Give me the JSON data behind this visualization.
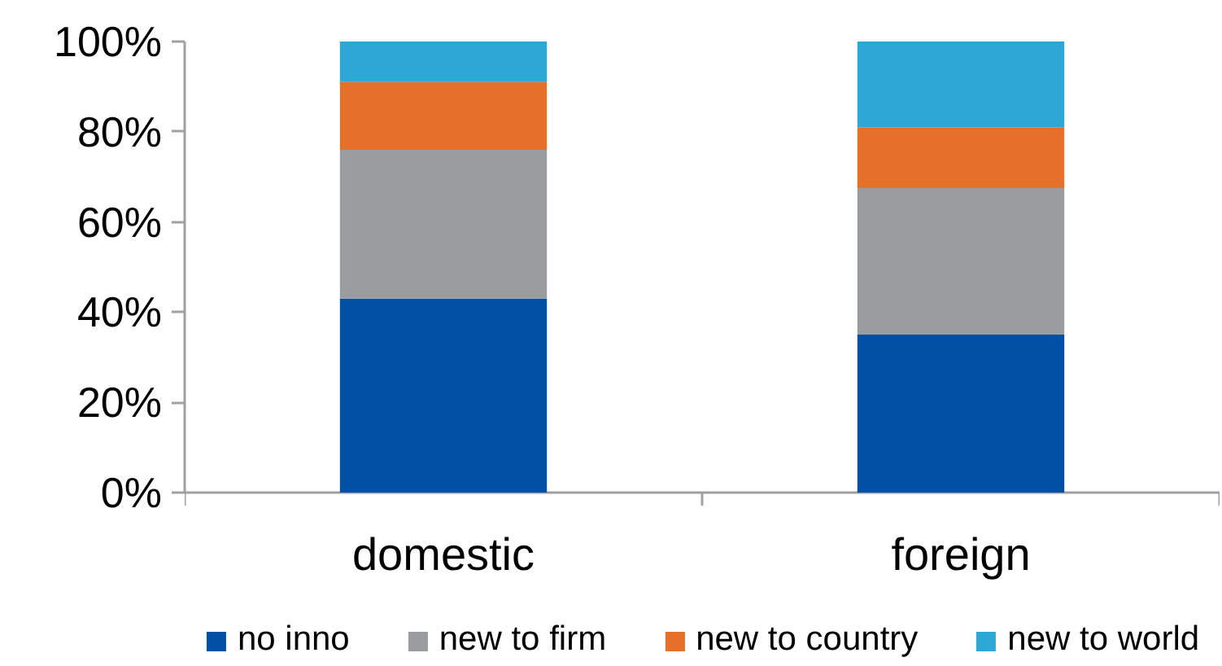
{
  "chart_data": {
    "type": "bar",
    "stacked": true,
    "categories": [
      "domestic",
      "foreign"
    ],
    "series": [
      {
        "name": "no inno",
        "color": "#0050a4",
        "values": [
          43,
          35
        ]
      },
      {
        "name": "new to firm",
        "color": "#9a9d9e",
        "values": [
          33,
          32.5
        ]
      },
      {
        "name": "new to country",
        "color": "#e4702b",
        "values": [
          15,
          13.5
        ]
      },
      {
        "name": "new to world",
        "color": "#2da7d5",
        "values": [
          9,
          19
        ]
      }
    ],
    "ylim": [
      0,
      100
    ],
    "yticks": [
      {
        "value": 0,
        "label": "0%"
      },
      {
        "value": 20,
        "label": "20%"
      },
      {
        "value": 40,
        "label": "40%"
      },
      {
        "value": 60,
        "label": "60%"
      },
      {
        "value": 80,
        "label": "80%"
      },
      {
        "value": 100,
        "label": "100%"
      }
    ],
    "grid": false,
    "legend": "bottom"
  }
}
